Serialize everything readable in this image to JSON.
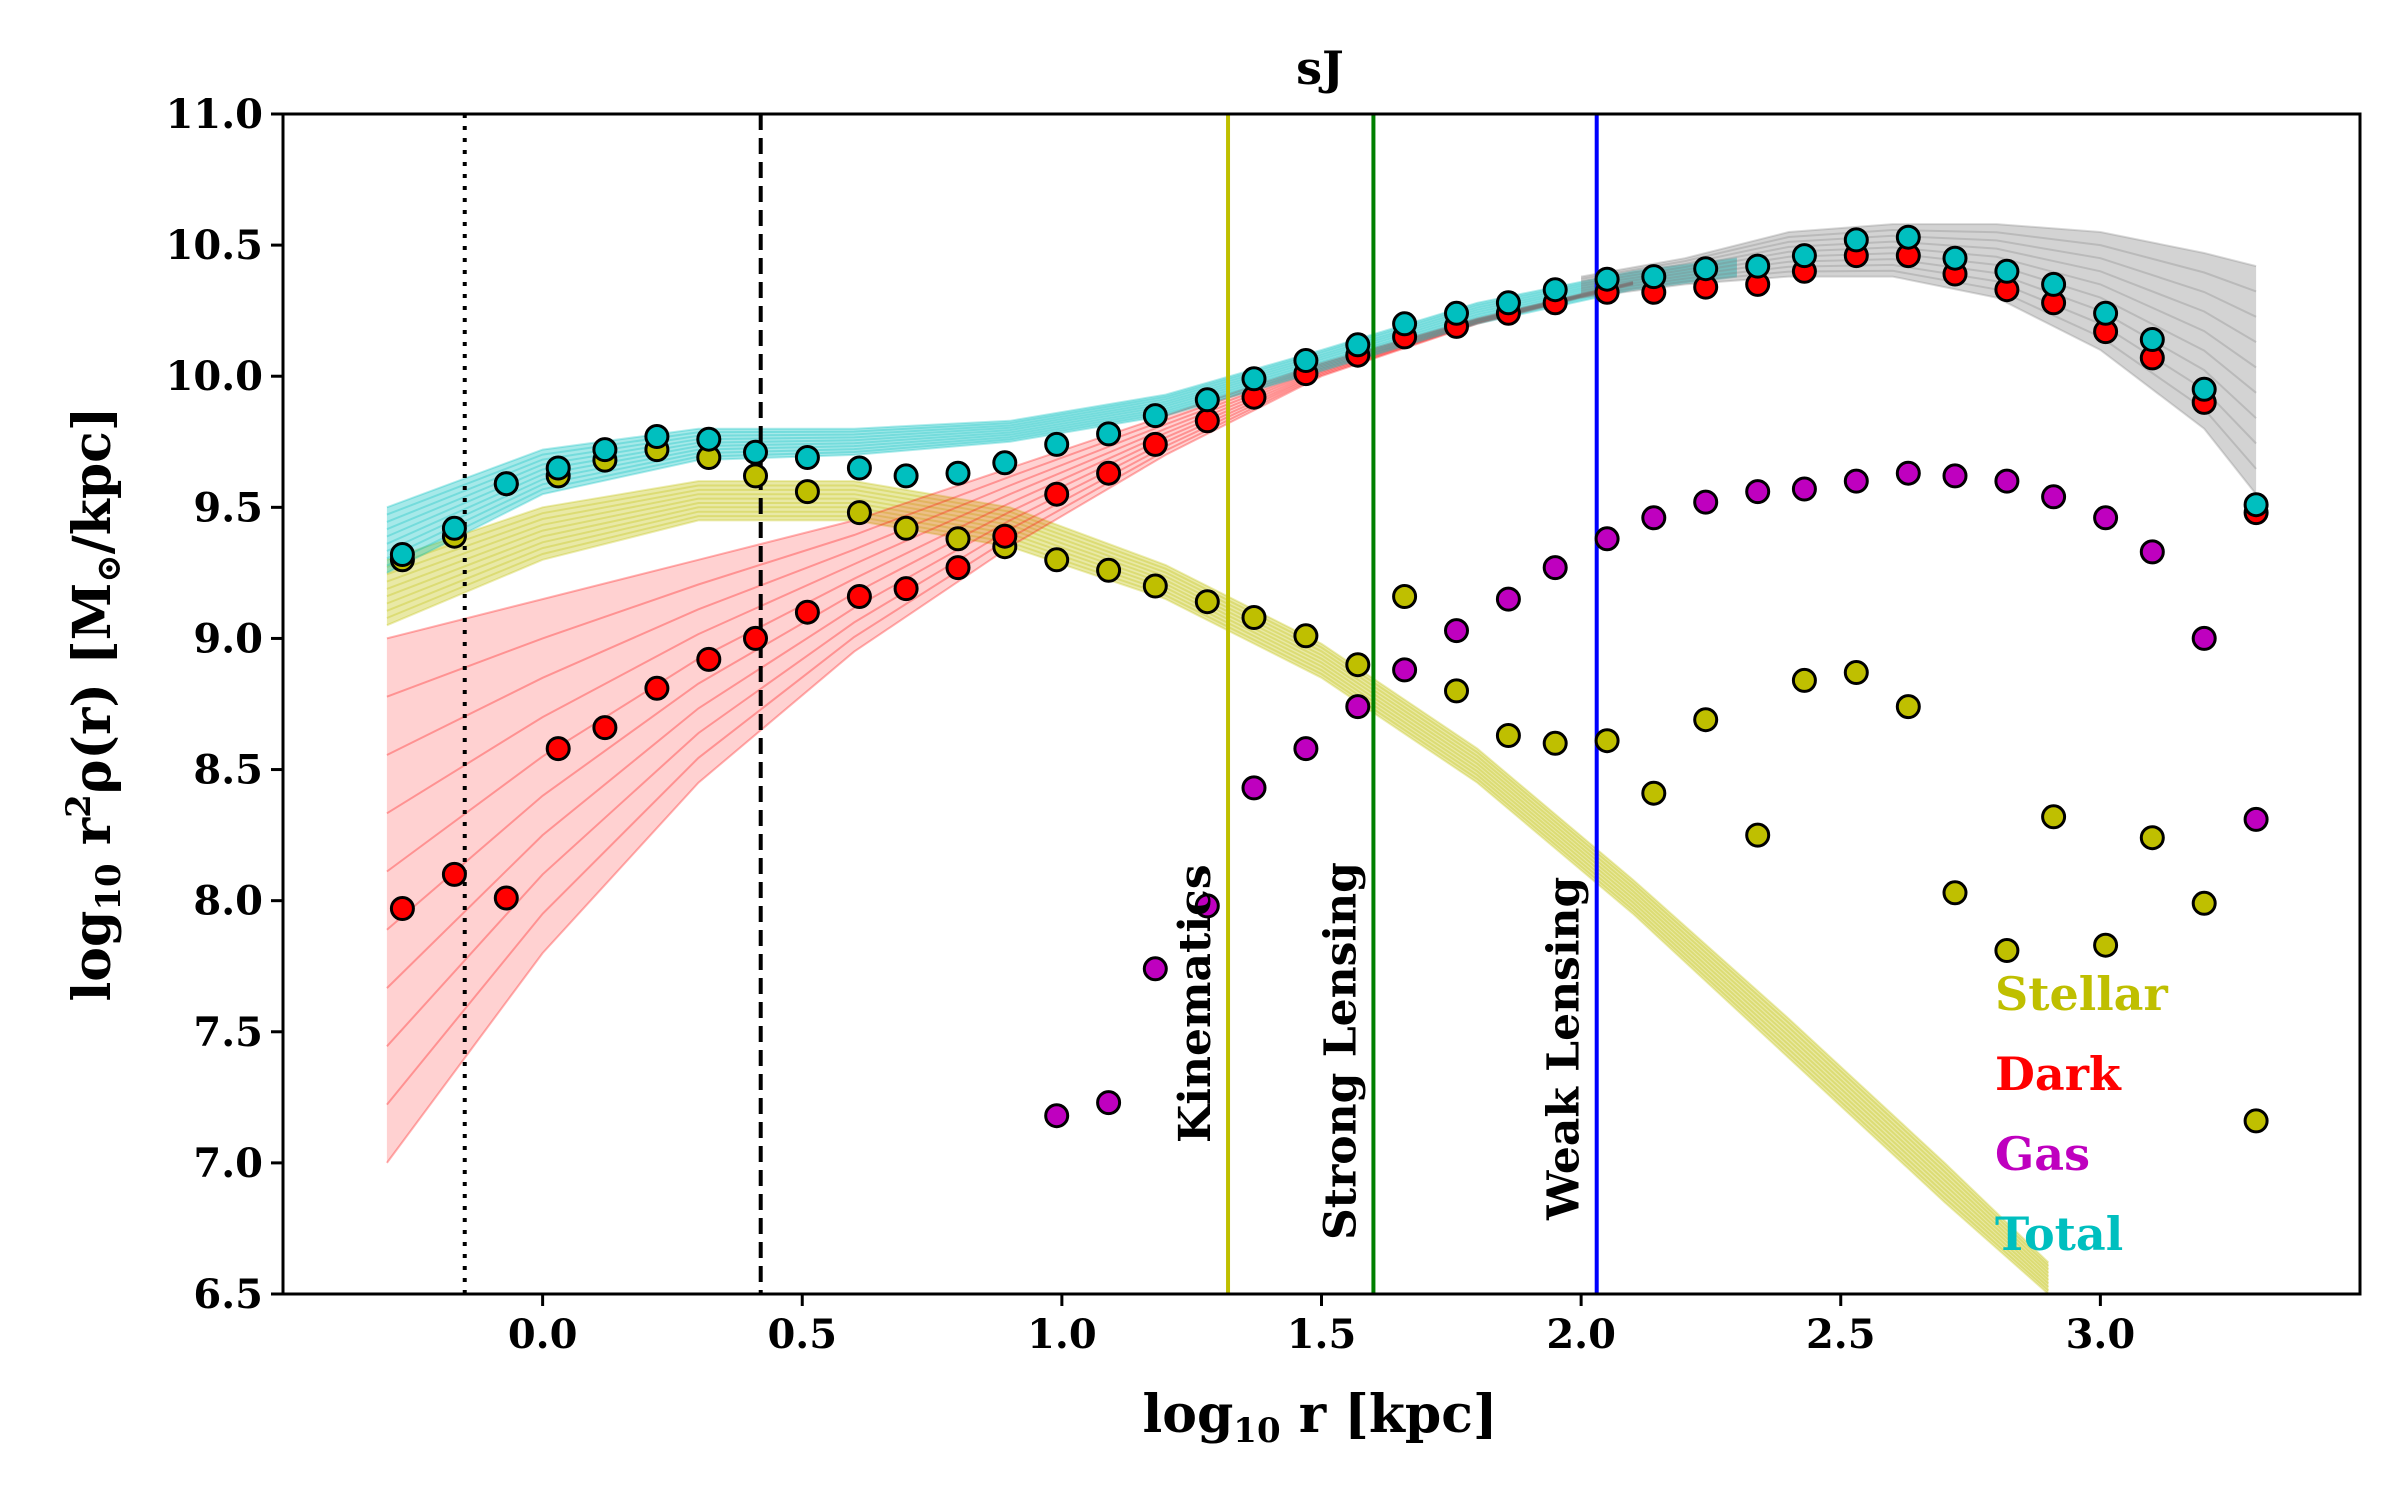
{
  "chart_data": {
    "type": "scatter",
    "title": "sJ",
    "xlabel": "log",
    "xlabel_sub": "10",
    "xlabel_rest": " r  [kpc]",
    "ylabel": "log",
    "ylabel_sub": "10",
    "ylabel_rest": "  r",
    "ylabel_sup": "2",
    "ylabel_tail": "ρ(r)  [M",
    "ylabel_sun": "⊙",
    "ylabel_end": "/kpc]",
    "xlim": [
      -0.5,
      3.5
    ],
    "ylim": [
      6.5,
      11.0
    ],
    "xticks": [
      "0.0",
      "0.5",
      "1.0",
      "1.5",
      "2.0",
      "2.5",
      "3.0"
    ],
    "xtick_values": [
      0.0,
      0.5,
      1.0,
      1.5,
      2.0,
      2.5,
      3.0
    ],
    "yticks": [
      "6.5",
      "7.0",
      "7.5",
      "8.0",
      "8.5",
      "9.0",
      "9.5",
      "10.0",
      "10.5",
      "11.0"
    ],
    "ytick_values": [
      6.5,
      7.0,
      7.5,
      8.0,
      8.5,
      9.0,
      9.5,
      10.0,
      10.5,
      11.0
    ],
    "colors": {
      "stellar": "#bfbf00",
      "dark": "#ff0000",
      "gas": "#bf00bf",
      "total": "#00bfbf",
      "kinematics": "#bfbf00",
      "strong": "#008000",
      "weak": "#0000ff",
      "gray": "#808080"
    },
    "vlines": [
      {
        "x": -0.15,
        "style": "dotted",
        "color": "#000000"
      },
      {
        "x": 0.42,
        "style": "dashed",
        "color": "#000000"
      },
      {
        "x": 1.32,
        "style": "solid",
        "color": "#bfbf00",
        "label": "Kinematics"
      },
      {
        "x": 1.6,
        "style": "solid",
        "color": "#008000",
        "label": "Strong Lensing"
      },
      {
        "x": 2.03,
        "style": "solid",
        "color": "#0000ff",
        "label": "Weak Lensing"
      }
    ],
    "legend": [
      {
        "label": "Stellar",
        "color": "#bfbf00"
      },
      {
        "label": "Dark",
        "color": "#ff0000"
      },
      {
        "label": "Gas",
        "color": "#bf00bf"
      },
      {
        "label": "Total",
        "color": "#00bfbf"
      }
    ],
    "x": [
      -0.27,
      -0.17,
      -0.07,
      0.03,
      0.12,
      0.22,
      0.32,
      0.41,
      0.51,
      0.61,
      0.7,
      0.8,
      0.89,
      0.99,
      1.09,
      1.18,
      1.28,
      1.37,
      1.47,
      1.57,
      1.66,
      1.76,
      1.86,
      1.95,
      2.05,
      2.14,
      2.24,
      2.34,
      2.43,
      2.53,
      2.63,
      2.72,
      2.82,
      2.91,
      3.01,
      3.1,
      3.2,
      3.3
    ],
    "series": [
      {
        "name": "Stellar",
        "color": "#bfbf00",
        "values": [
          9.3,
          9.39,
          9.59,
          9.62,
          9.68,
          9.72,
          9.69,
          9.62,
          9.56,
          9.48,
          9.42,
          9.38,
          9.35,
          9.3,
          9.26,
          9.2,
          9.14,
          9.08,
          9.01,
          8.9,
          9.16,
          8.8,
          8.63,
          8.6,
          8.61,
          8.41,
          8.69,
          8.25,
          8.84,
          8.87,
          8.74,
          8.03,
          7.81,
          8.32,
          7.83,
          8.24,
          7.99,
          7.16
        ]
      },
      {
        "name": "Dark",
        "color": "#ff0000",
        "values": [
          7.97,
          8.1,
          8.01,
          8.58,
          8.66,
          8.81,
          8.92,
          9.0,
          9.1,
          9.16,
          9.19,
          9.27,
          9.39,
          9.55,
          9.63,
          9.74,
          9.83,
          9.92,
          10.01,
          10.08,
          10.15,
          10.19,
          10.24,
          10.28,
          10.32,
          10.32,
          10.34,
          10.35,
          10.4,
          10.46,
          10.46,
          10.39,
          10.33,
          10.28,
          10.17,
          10.07,
          9.9,
          9.48
        ]
      },
      {
        "name": "Gas",
        "color": "#bf00bf",
        "values": [
          null,
          null,
          null,
          null,
          null,
          null,
          null,
          null,
          null,
          null,
          null,
          null,
          null,
          7.18,
          7.23,
          7.74,
          7.98,
          8.43,
          8.58,
          8.74,
          8.88,
          9.03,
          9.15,
          9.27,
          9.38,
          9.46,
          9.52,
          9.56,
          9.57,
          9.6,
          9.63,
          9.62,
          9.6,
          9.54,
          9.46,
          9.33,
          9.0,
          8.31
        ]
      },
      {
        "name": "Total",
        "color": "#00bfbf",
        "values": [
          9.32,
          9.42,
          9.59,
          9.65,
          9.72,
          9.77,
          9.76,
          9.71,
          9.69,
          9.65,
          9.62,
          9.63,
          9.67,
          9.74,
          9.78,
          9.85,
          9.91,
          9.99,
          10.06,
          10.12,
          10.2,
          10.24,
          10.28,
          10.33,
          10.37,
          10.38,
          10.41,
          10.42,
          10.46,
          10.52,
          10.53,
          10.45,
          10.4,
          10.35,
          10.24,
          10.14,
          9.95,
          9.51
        ]
      }
    ],
    "fit_bands": [
      {
        "name": "Stellar fits",
        "color": "#bfbf00",
        "x": [
          -0.3,
          0.0,
          0.3,
          0.6,
          0.9,
          1.2,
          1.5,
          1.8,
          2.1,
          2.4,
          2.7,
          2.9
        ],
        "lower": [
          9.05,
          9.3,
          9.45,
          9.45,
          9.35,
          9.15,
          8.85,
          8.45,
          7.95,
          7.4,
          6.85,
          6.5
        ],
        "upper": [
          9.3,
          9.5,
          9.6,
          9.6,
          9.5,
          9.28,
          8.98,
          8.58,
          8.08,
          7.55,
          7.0,
          6.62
        ]
      },
      {
        "name": "Dark fits",
        "color": "#ff0000",
        "x": [
          -0.3,
          0.0,
          0.3,
          0.6,
          0.9,
          1.2,
          1.5,
          1.8,
          2.1
        ],
        "lower": [
          7.0,
          7.8,
          8.45,
          8.95,
          9.35,
          9.7,
          10.0,
          10.2,
          10.35
        ],
        "upper": [
          9.0,
          9.15,
          9.3,
          9.45,
          9.65,
          9.85,
          10.05,
          10.22,
          10.36
        ]
      },
      {
        "name": "Total fits",
        "color": "#00bfbf",
        "x": [
          -0.3,
          0.0,
          0.3,
          0.6,
          0.9,
          1.2,
          1.5,
          1.8,
          2.1,
          2.3
        ],
        "lower": [
          9.25,
          9.55,
          9.68,
          9.7,
          9.75,
          9.85,
          10.02,
          10.2,
          10.33,
          10.38
        ],
        "upper": [
          9.5,
          9.72,
          9.8,
          9.8,
          9.83,
          9.93,
          10.1,
          10.28,
          10.4,
          10.45
        ]
      },
      {
        "name": "Outer fits",
        "color": "#808080",
        "x": [
          2.0,
          2.2,
          2.4,
          2.6,
          2.8,
          3.0,
          3.2,
          3.3
        ],
        "lower": [
          10.3,
          10.35,
          10.38,
          10.38,
          10.3,
          10.1,
          9.8,
          9.55
        ],
        "upper": [
          10.38,
          10.45,
          10.55,
          10.58,
          10.58,
          10.55,
          10.47,
          10.42
        ]
      }
    ]
  }
}
